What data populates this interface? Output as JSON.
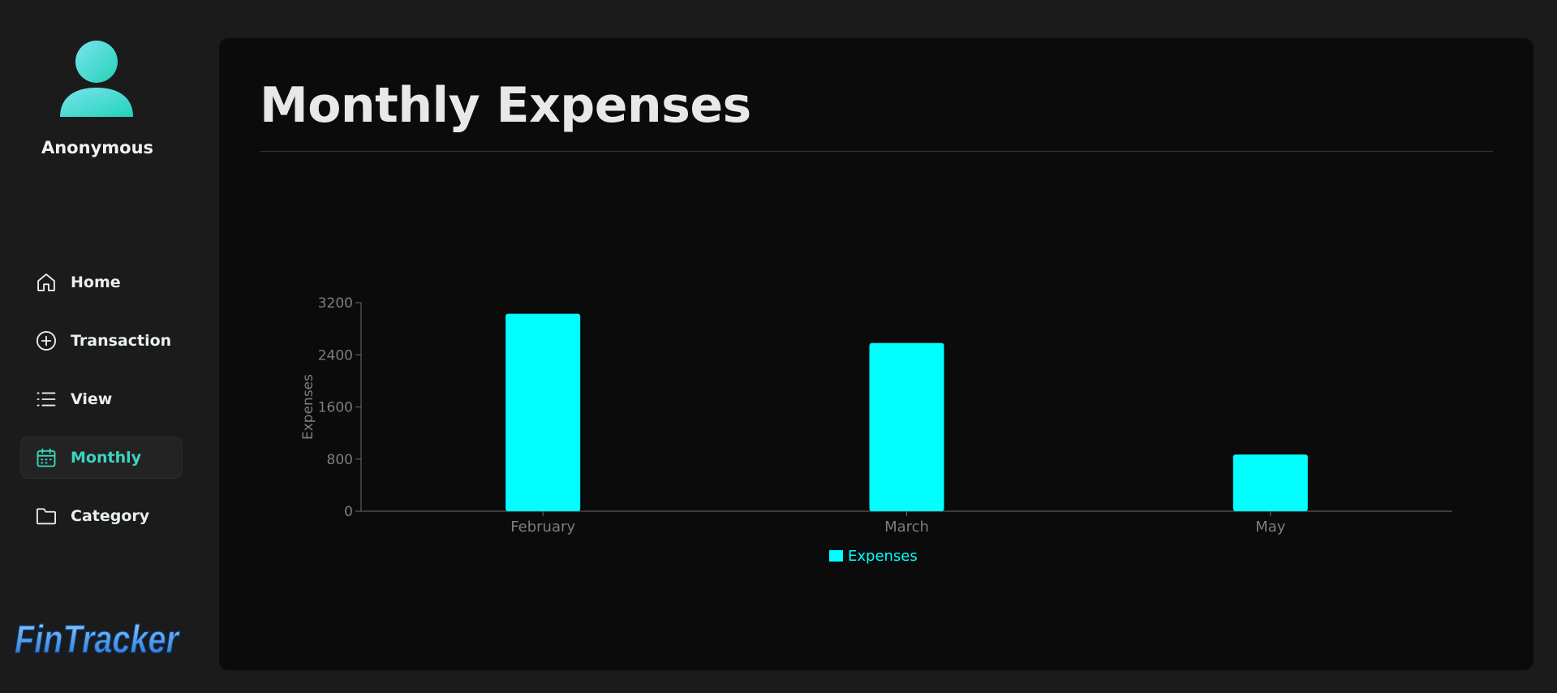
{
  "user": {
    "name": "Anonymous"
  },
  "nav": {
    "items": [
      {
        "label": "Home",
        "icon": "home-icon"
      },
      {
        "label": "Transaction",
        "icon": "plus-circle-icon"
      },
      {
        "label": "View",
        "icon": "list-icon"
      },
      {
        "label": "Monthly",
        "icon": "calendar-icon",
        "active": true
      },
      {
        "label": "Category",
        "icon": "folder-icon"
      }
    ]
  },
  "brand": {
    "logo_text": "FinTracker"
  },
  "page": {
    "title": "Monthly Expenses"
  },
  "colors": {
    "accent": "#3bd6c0",
    "bar": "#00ffff"
  },
  "chart_data": {
    "type": "bar",
    "categories": [
      "February",
      "March",
      "May"
    ],
    "series": [
      {
        "name": "Expenses",
        "values": [
          3030,
          2580,
          870
        ]
      }
    ],
    "ylabel": "Expenses",
    "ylim": [
      0,
      3200
    ],
    "yticks": [
      0,
      800,
      1600,
      2400,
      3200
    ],
    "legend": "bottom",
    "grid": false
  }
}
